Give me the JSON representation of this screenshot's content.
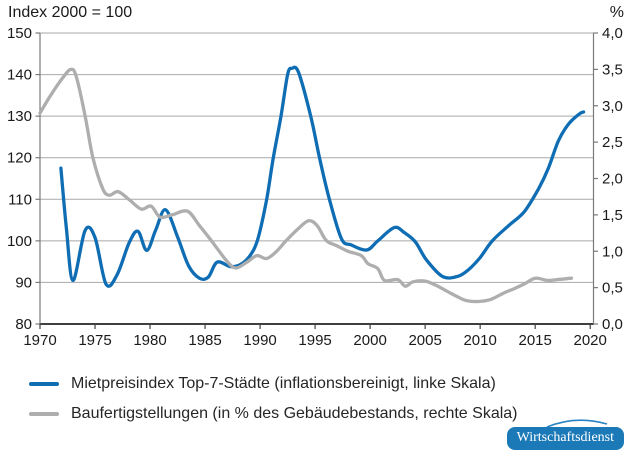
{
  "header": {
    "left_label": "Index 2000 = 100",
    "right_label": "%"
  },
  "chart_data": {
    "type": "line",
    "title": "",
    "grid": "horizontal",
    "legend_position": "bottom",
    "x_axis": {
      "range": [
        1970,
        2020.3
      ],
      "ticks": [
        1970,
        1975,
        1980,
        1985,
        1990,
        1995,
        2000,
        2005,
        2010,
        2015,
        2020
      ]
    },
    "y_left": {
      "label": "Index 2000 = 100",
      "range": [
        80,
        150
      ],
      "ticks": [
        80,
        90,
        100,
        110,
        120,
        130,
        140,
        150
      ]
    },
    "y_right": {
      "label": "%",
      "range": [
        0,
        4
      ],
      "ticks": [
        {
          "value": 0.0,
          "label": "0,0"
        },
        {
          "value": 0.5,
          "label": "0,5"
        },
        {
          "value": 1.0,
          "label": "1,0"
        },
        {
          "value": 1.5,
          "label": "1,5"
        },
        {
          "value": 2.0,
          "label": "2,0"
        },
        {
          "value": 2.5,
          "label": "2,5"
        },
        {
          "value": 3.0,
          "label": "3,0"
        },
        {
          "value": 3.5,
          "label": "3,5"
        },
        {
          "value": 4.0,
          "label": "4,0"
        }
      ]
    },
    "series": [
      {
        "name": "Mietpreisindex Top-7-Städte (inflationsbereinigt, linke Skala)",
        "axis": "left",
        "color": "#0f6db4",
        "points": [
          [
            1971.9,
            117.5
          ],
          [
            1972.4,
            103
          ],
          [
            1973.0,
            90.5
          ],
          [
            1974.1,
            102.5
          ],
          [
            1975.0,
            100.8
          ],
          [
            1976.0,
            89.6
          ],
          [
            1977.0,
            91.8
          ],
          [
            1978.1,
            99.5
          ],
          [
            1978.9,
            102.3
          ],
          [
            1979.7,
            97.7
          ],
          [
            1980.5,
            102.5
          ],
          [
            1981.4,
            107.5
          ],
          [
            1982.5,
            101
          ],
          [
            1983.5,
            94
          ],
          [
            1984.5,
            91
          ],
          [
            1985.3,
            91.3
          ],
          [
            1986.1,
            94.9
          ],
          [
            1987.3,
            93.8
          ],
          [
            1988.2,
            94.3
          ],
          [
            1989.1,
            96.5
          ],
          [
            1989.8,
            100.5
          ],
          [
            1990.6,
            110
          ],
          [
            1991.2,
            120
          ],
          [
            1991.9,
            130
          ],
          [
            1992.5,
            140
          ],
          [
            1992.9,
            141.5
          ],
          [
            1993.5,
            140.5
          ],
          [
            1994.6,
            130
          ],
          [
            1995.4,
            120
          ],
          [
            1996.3,
            110
          ],
          [
            1997.4,
            100.5
          ],
          [
            1998.3,
            99
          ],
          [
            1999.7,
            97.8
          ],
          [
            2000.7,
            100
          ],
          [
            2002.2,
            103.2
          ],
          [
            2003.1,
            102
          ],
          [
            2004.1,
            99.8
          ],
          [
            2005.1,
            95.5
          ],
          [
            2006.6,
            91.4
          ],
          [
            2008.0,
            91.5
          ],
          [
            2009.0,
            93.2
          ],
          [
            2010.0,
            96
          ],
          [
            2011.1,
            100
          ],
          [
            2012.6,
            103.7
          ],
          [
            2014.0,
            107
          ],
          [
            2015.3,
            112.5
          ],
          [
            2016.2,
            117.5
          ],
          [
            2017.1,
            124
          ],
          [
            2018.0,
            128
          ],
          [
            2019.0,
            130.5
          ],
          [
            2019.4,
            131
          ]
        ]
      },
      {
        "name": "Baufertigstellungen (in % des Gebäudebestands, rechte Skala)",
        "axis": "right",
        "color": "#aeaeae",
        "points": [
          [
            1970.0,
            2.9
          ],
          [
            1971.0,
            3.15
          ],
          [
            1972.0,
            3.37
          ],
          [
            1972.8,
            3.5
          ],
          [
            1973.3,
            3.4
          ],
          [
            1974.1,
            2.86
          ],
          [
            1974.8,
            2.29
          ],
          [
            1975.7,
            1.86
          ],
          [
            1976.3,
            1.77
          ],
          [
            1977.1,
            1.82
          ],
          [
            1978.1,
            1.71
          ],
          [
            1979.2,
            1.58
          ],
          [
            1980.1,
            1.62
          ],
          [
            1980.9,
            1.47
          ],
          [
            1982.0,
            1.5
          ],
          [
            1983.4,
            1.55
          ],
          [
            1984.5,
            1.35
          ],
          [
            1985.6,
            1.14
          ],
          [
            1987.0,
            0.86
          ],
          [
            1987.8,
            0.77
          ],
          [
            1988.8,
            0.85
          ],
          [
            1989.7,
            0.94
          ],
          [
            1990.6,
            0.9
          ],
          [
            1991.5,
            1.0
          ],
          [
            1992.4,
            1.15
          ],
          [
            1993.4,
            1.3
          ],
          [
            1994.4,
            1.42
          ],
          [
            1995.2,
            1.35
          ],
          [
            1996.0,
            1.15
          ],
          [
            1996.9,
            1.08
          ],
          [
            1998.0,
            1.0
          ],
          [
            1999.2,
            0.94
          ],
          [
            1999.8,
            0.83
          ],
          [
            2000.7,
            0.76
          ],
          [
            2001.3,
            0.6
          ],
          [
            2002.5,
            0.61
          ],
          [
            2003.2,
            0.52
          ],
          [
            2003.9,
            0.58
          ],
          [
            2005.0,
            0.59
          ],
          [
            2006.0,
            0.53
          ],
          [
            2007.0,
            0.45
          ],
          [
            2008.0,
            0.37
          ],
          [
            2008.8,
            0.32
          ],
          [
            2010.0,
            0.31
          ],
          [
            2011.0,
            0.34
          ],
          [
            2012.2,
            0.43
          ],
          [
            2013.0,
            0.48
          ],
          [
            2014.0,
            0.55
          ],
          [
            2015.0,
            0.63
          ],
          [
            2016.1,
            0.6
          ],
          [
            2017.0,
            0.61
          ],
          [
            2018.3,
            0.63
          ]
        ]
      }
    ]
  },
  "legend": [
    {
      "label": "Mietpreisindex Top-7-Städte (inflationsbereinigt, linke Skala)",
      "color": "#0f6db4"
    },
    {
      "label": "Baufertigstellungen (in % des Gebäudebestands, rechte Skala)",
      "color": "#aeaeae"
    }
  ],
  "badge": {
    "label": "Wirtschaftsdienst",
    "color": "#1b79b8"
  }
}
